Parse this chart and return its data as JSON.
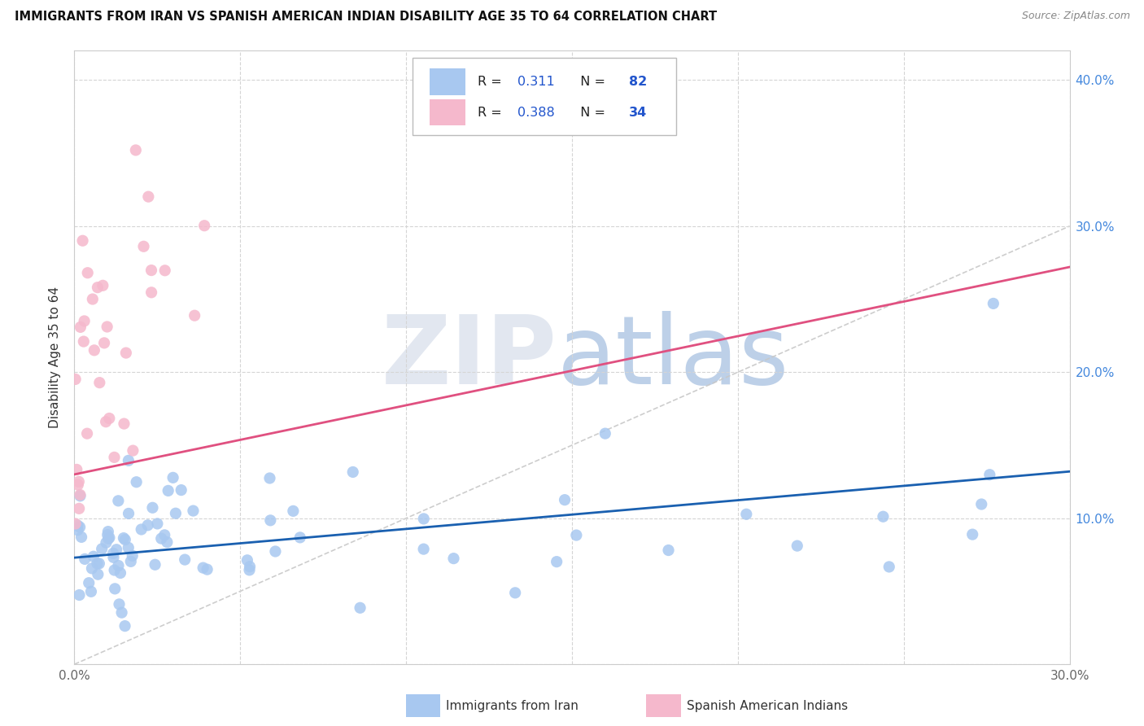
{
  "title": "IMMIGRANTS FROM IRAN VS SPANISH AMERICAN INDIAN DISABILITY AGE 35 TO 64 CORRELATION CHART",
  "source": "Source: ZipAtlas.com",
  "ylabel_label": "Disability Age 35 to 64",
  "xlim": [
    0.0,
    0.3
  ],
  "ylim": [
    0.0,
    0.42
  ],
  "blue_R": "0.311",
  "blue_N": "82",
  "pink_R": "0.388",
  "pink_N": "34",
  "blue_color": "#a8c8f0",
  "pink_color": "#f5b8cc",
  "blue_line_color": "#1a60b0",
  "pink_line_color": "#e05080",
  "diagonal_color": "#c8c8c8",
  "legend_text_color": "#2255cc",
  "bottom_legend_blue": "Immigrants from Iran",
  "bottom_legend_pink": "Spanish American Indians",
  "blue_trend_x0": 0.0,
  "blue_trend_y0": 0.073,
  "blue_trend_x1": 0.3,
  "blue_trend_y1": 0.132,
  "pink_trend_x0": 0.0,
  "pink_trend_y0": 0.13,
  "pink_trend_x1": 0.3,
  "pink_trend_y1": 0.272
}
